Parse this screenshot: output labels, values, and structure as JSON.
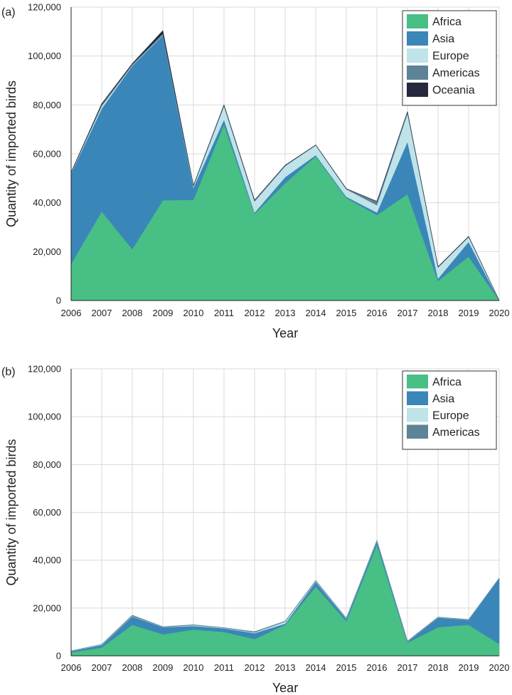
{
  "chart_data": [
    {
      "panel_label": "(a)",
      "type": "area",
      "stacked": true,
      "xlabel": "Year",
      "ylabel": "Quantity of imported birds",
      "ylim": [
        0,
        120000
      ],
      "yticks": [
        "0",
        "20,000",
        "40,000",
        "60,000",
        "80,000",
        "100,000",
        "120,000"
      ],
      "ytick_values": [
        0,
        20000,
        40000,
        60000,
        80000,
        100000,
        120000
      ],
      "x": [
        2006,
        2007,
        2008,
        2009,
        2010,
        2011,
        2012,
        2013,
        2014,
        2015,
        2016,
        2017,
        2018,
        2019,
        2020
      ],
      "legend_position": "top-right",
      "grid": true,
      "series": [
        {
          "name": "Africa",
          "color": "#48bf84",
          "values": [
            15000,
            36500,
            21000,
            41000,
            41200,
            72000,
            35500,
            48000,
            59000,
            42000,
            35000,
            43500,
            8000,
            18000,
            0
          ]
        },
        {
          "name": "Asia",
          "color": "#3a86b8",
          "values": [
            37000,
            42000,
            75000,
            67500,
            5000,
            2000,
            500,
            2500,
            500,
            500,
            1000,
            21500,
            1000,
            6000,
            0
          ]
        },
        {
          "name": "Europe",
          "color": "#bfe3e8",
          "values": [
            200,
            1000,
            200,
            200,
            500,
            5500,
            4500,
            4500,
            4000,
            3000,
            3000,
            11500,
            4500,
            2000,
            0
          ]
        },
        {
          "name": "Americas",
          "color": "#5c8396",
          "values": [
            200,
            700,
            500,
            500,
            300,
            500,
            500,
            300,
            100,
            200,
            1500,
            700,
            300,
            200,
            0
          ]
        },
        {
          "name": "Oceania",
          "color": "#26283f",
          "values": [
            50,
            300,
            200,
            1200,
            50,
            50,
            50,
            50,
            50,
            50,
            50,
            50,
            50,
            50,
            0
          ]
        }
      ]
    },
    {
      "panel_label": "(b)",
      "type": "area",
      "stacked": true,
      "xlabel": "Year",
      "ylabel": "Quantity of imported birds",
      "ylim": [
        0,
        120000
      ],
      "yticks": [
        "0",
        "20,000",
        "40,000",
        "60,000",
        "80,000",
        "100,000",
        "120,000"
      ],
      "ytick_values": [
        0,
        20000,
        40000,
        60000,
        80000,
        100000,
        120000
      ],
      "x": [
        2006,
        2007,
        2008,
        2009,
        2010,
        2011,
        2012,
        2013,
        2014,
        2015,
        2016,
        2017,
        2018,
        2019,
        2020
      ],
      "legend_position": "top-right",
      "grid": true,
      "series": [
        {
          "name": "Africa",
          "color": "#48bf84",
          "values": [
            1500,
            3500,
            13000,
            9000,
            11000,
            10000,
            7000,
            13000,
            29000,
            14500,
            46500,
            5500,
            12000,
            13000,
            5000
          ]
        },
        {
          "name": "Asia",
          "color": "#3a86b8",
          "values": [
            500,
            1000,
            3500,
            3000,
            1500,
            1500,
            2500,
            500,
            2000,
            1000,
            1500,
            500,
            4000,
            2000,
            27500
          ]
        },
        {
          "name": "Europe",
          "color": "#bfe3e8",
          "values": [
            50,
            200,
            200,
            100,
            300,
            200,
            300,
            800,
            300,
            200,
            200,
            100,
            100,
            100,
            0
          ]
        },
        {
          "name": "Americas",
          "color": "#5c8396",
          "values": [
            50,
            100,
            300,
            100,
            200,
            100,
            300,
            200,
            200,
            100,
            100,
            100,
            100,
            100,
            0
          ]
        }
      ]
    }
  ]
}
